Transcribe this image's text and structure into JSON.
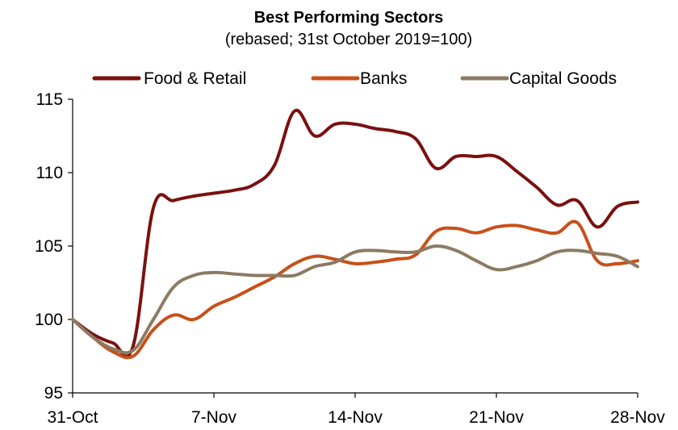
{
  "chart_data": {
    "type": "line",
    "title": "Best Performing Sectors",
    "subtitle": "(rebased; 31st October 2019=100)",
    "xlabel": "",
    "ylabel": "",
    "ylim": [
      95,
      115
    ],
    "yticks": [
      95,
      100,
      105,
      110,
      115
    ],
    "x_tick_labels": [
      "31-Oct",
      "7-Nov",
      "14-Nov",
      "21-Nov",
      "28-Nov"
    ],
    "x": [
      "31-Oct",
      "1-Nov",
      "2-Nov",
      "3-Nov",
      "4-Nov",
      "5-Nov",
      "6-Nov",
      "7-Nov",
      "8-Nov",
      "9-Nov",
      "10-Nov",
      "11-Nov",
      "12-Nov",
      "13-Nov",
      "14-Nov",
      "15-Nov",
      "16-Nov",
      "17-Nov",
      "18-Nov",
      "19-Nov",
      "20-Nov",
      "21-Nov",
      "22-Nov",
      "23-Nov",
      "24-Nov",
      "25-Nov",
      "26-Nov",
      "27-Nov",
      "28-Nov"
    ],
    "legend_position": "top",
    "grid": false,
    "series": [
      {
        "name": "Food & Retail",
        "color": "#7b1010",
        "values": [
          100,
          99.0,
          98.4,
          98.2,
          107.6,
          108.1,
          108.4,
          108.6,
          108.8,
          109.2,
          110.5,
          114.2,
          112.5,
          113.3,
          113.3,
          113.0,
          112.8,
          112.3,
          110.3,
          111.1,
          111.1,
          111.1,
          110.1,
          109.0,
          107.8,
          108.1,
          106.3,
          107.7,
          108.0
        ]
      },
      {
        "name": "Banks",
        "color": "#c8501a",
        "values": [
          100,
          98.8,
          97.8,
          97.5,
          99.3,
          100.3,
          100.0,
          100.9,
          101.5,
          102.2,
          102.9,
          103.8,
          104.3,
          104.1,
          103.8,
          103.9,
          104.1,
          104.4,
          106.0,
          106.2,
          105.9,
          106.3,
          106.4,
          106.1,
          105.9,
          106.6,
          104.0,
          103.8,
          104.0
        ]
      },
      {
        "name": "Capital Goods",
        "color": "#8b7b62",
        "values": [
          100,
          98.8,
          98.0,
          97.9,
          100.0,
          102.2,
          103.0,
          103.2,
          103.1,
          103.0,
          103.0,
          103.0,
          103.6,
          103.9,
          104.6,
          104.7,
          104.6,
          104.6,
          105.0,
          104.7,
          104.0,
          103.4,
          103.6,
          104.0,
          104.6,
          104.7,
          104.5,
          104.3,
          103.6
        ]
      }
    ]
  }
}
